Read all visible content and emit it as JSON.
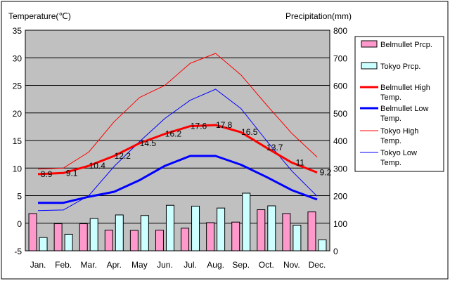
{
  "chart_data": {
    "type": "bar+line",
    "categories": [
      "Jan.",
      "Feb.",
      "Mar.",
      "Apr.",
      "May",
      "Jun.",
      "Jul.",
      "Aug.",
      "Sep.",
      "Oct.",
      "Nov.",
      "Dec."
    ],
    "left_axis": {
      "title": "Temperature(℃)",
      "range": [
        -5,
        35
      ],
      "ticks": [
        -5,
        0,
        5,
        10,
        15,
        20,
        25,
        30,
        35
      ]
    },
    "right_axis": {
      "title": "Precipitation(mm)",
      "range": [
        0,
        800
      ],
      "ticks": [
        0,
        100,
        200,
        300,
        400,
        500,
        600,
        700,
        800
      ]
    },
    "bars": [
      {
        "name": "Belmullet Prcp.",
        "legend_lines": [
          "Belmullet Prcp."
        ],
        "color": "#ff99cc",
        "values": [
          135,
          98,
          98,
          75,
          74,
          75,
          82,
          102,
          104,
          149,
          135,
          141
        ]
      },
      {
        "name": "Tokyo Prcp.",
        "legend_lines": [
          "Tokyo Prcp."
        ],
        "color": "#ccffff",
        "values": [
          48,
          60,
          117,
          130,
          128,
          165,
          162,
          155,
          209,
          163,
          93,
          40
        ]
      }
    ],
    "lines": [
      {
        "name": "Belmullet High Temp.",
        "legend_lines": [
          "Belmullet High",
          "Temp."
        ],
        "color": "#ff0000",
        "width": 3,
        "values": [
          8.9,
          9.1,
          10.4,
          12.2,
          14.5,
          16.2,
          17.6,
          17.8,
          16.5,
          13.7,
          11,
          9.2
        ],
        "labels": [
          "8.9",
          "9.1",
          "10.4",
          "12.2",
          "14.5",
          "16.2",
          "17.6",
          "17.8",
          "16.5",
          "13.7",
          "11",
          "9.2"
        ]
      },
      {
        "name": "Belmullet Low Temp.",
        "legend_lines": [
          "Belmullet Low",
          "Temp."
        ],
        "color": "#0000ff",
        "width": 3,
        "values": [
          3.7,
          3.7,
          4.8,
          5.7,
          7.8,
          10.4,
          12.2,
          12.2,
          10.6,
          8.4,
          6.0,
          4.3
        ]
      },
      {
        "name": "Tokyo High Temp.",
        "legend_lines": [
          "Tokyo High",
          "Temp."
        ],
        "color": "#ff0000",
        "width": 1,
        "values": [
          9.8,
          10.0,
          12.9,
          18.4,
          22.8,
          25.0,
          29.0,
          30.8,
          26.9,
          21.5,
          16.3,
          12.0
        ]
      },
      {
        "name": "Tokyo Low Temp.",
        "legend_lines": [
          "Tokyo Low",
          "Temp."
        ],
        "color": "#0000ff",
        "width": 1,
        "values": [
          2.3,
          2.4,
          5.0,
          10.3,
          14.8,
          19.0,
          22.3,
          24.3,
          20.8,
          15.0,
          9.5,
          4.9
        ]
      }
    ],
    "plot_background": "#c0c0c0",
    "grid": true,
    "legend_position": "right"
  }
}
